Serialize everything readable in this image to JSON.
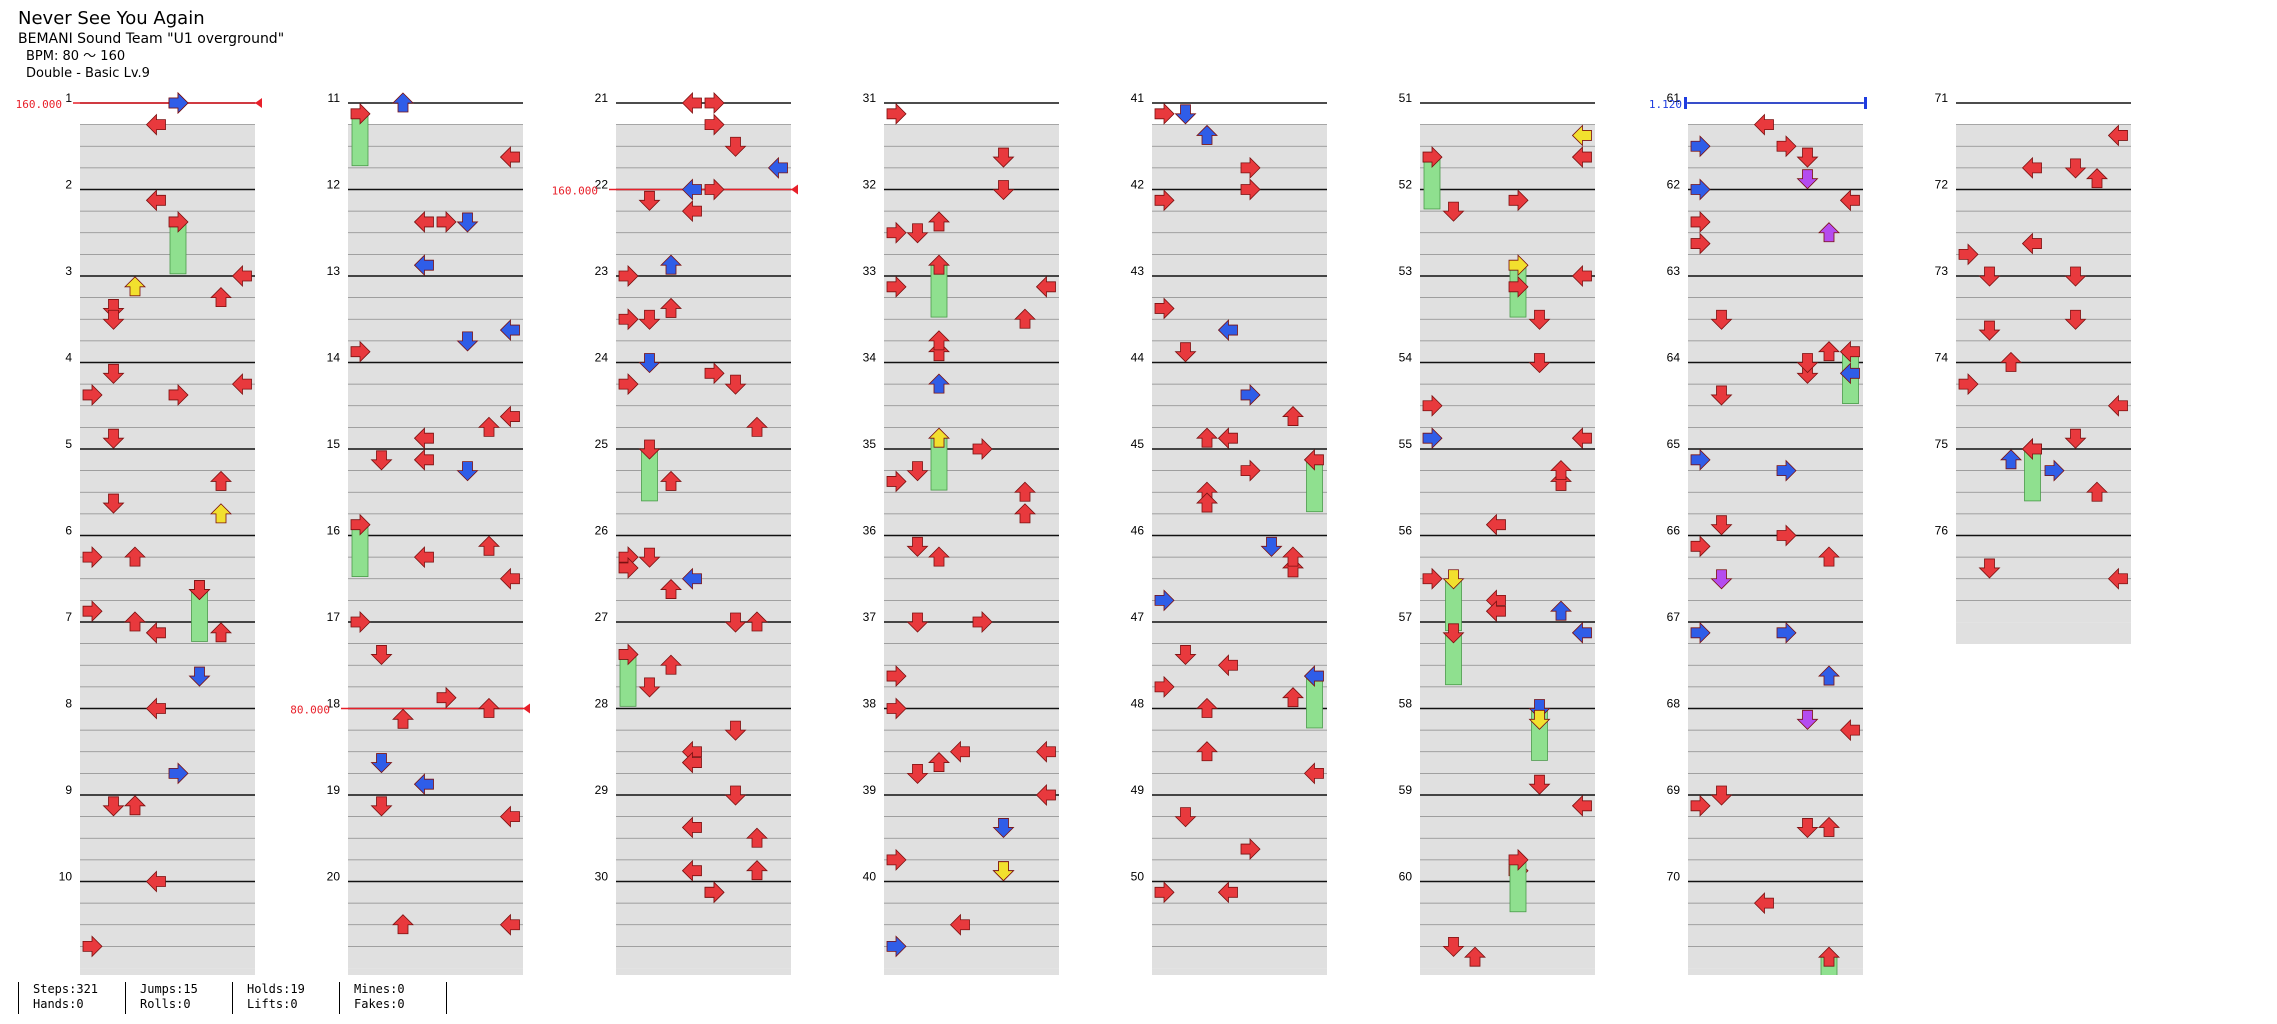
{
  "song": {
    "title": "Never See You Again",
    "artist": "BEMANI Sound Team \"U1 overground\"",
    "bpm_text": "BPM: 80 ～ 160",
    "difficulty_text": "Double - Basic  Lv.9"
  },
  "colors": {
    "red_arrow": "#e8393d",
    "blue_arrow": "#2f5de8",
    "yellow_arrow": "#f2e02e",
    "purple_arrow": "#b44cf0",
    "hold_green": "#8fe08f",
    "bpm_marker": "#e8202a",
    "speed_marker": "#1e3ce0",
    "band_gray": "#e0e0e0"
  },
  "bpm_changes": [
    {
      "measure": 1,
      "label": "160.000"
    },
    {
      "measure": 18,
      "label": "80.000"
    },
    {
      "measure": 22,
      "label": "160.000"
    }
  ],
  "speed_changes": [
    {
      "measure": 61,
      "label": "1.120"
    }
  ],
  "measures": [
    1,
    2,
    3,
    4,
    5,
    6,
    7,
    8,
    9,
    10,
    11,
    12,
    13,
    14,
    15,
    16,
    17,
    18,
    19,
    20,
    21,
    22,
    23,
    24,
    25,
    26,
    27,
    28,
    29,
    30,
    31,
    32,
    33,
    34,
    35,
    36,
    37,
    38,
    39,
    40,
    41,
    42,
    43,
    44,
    45,
    46,
    47,
    48,
    49,
    50,
    51,
    52,
    53,
    54,
    55,
    56,
    57,
    58,
    59,
    60,
    61,
    62,
    63,
    64,
    65,
    66,
    67,
    68,
    69,
    70,
    71,
    72,
    73,
    74,
    75,
    76
  ],
  "stats": [
    {
      "top": "Steps:321",
      "bottom": "Hands:0"
    },
    {
      "top": "Jumps:15",
      "bottom": "Rolls:0"
    },
    {
      "top": "Holds:19",
      "bottom": "Lifts:0"
    },
    {
      "top": "Mines:0",
      "bottom": "Fakes:0"
    }
  ]
}
